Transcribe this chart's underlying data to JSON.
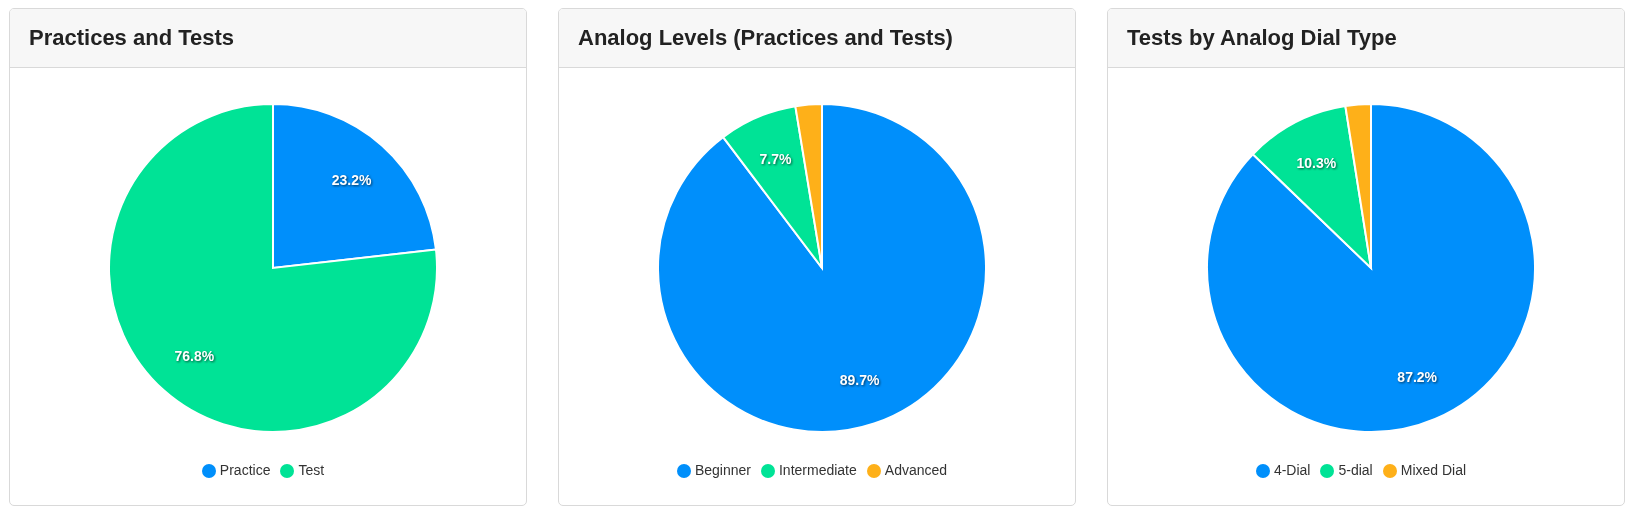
{
  "chart_data": [
    {
      "type": "pie",
      "title": "Practices and Tests",
      "categories": [
        "Practice",
        "Test"
      ],
      "values": [
        23.2,
        76.8
      ],
      "colors": [
        "#008ffb",
        "#00e396"
      ],
      "value_labels": [
        "23.2%",
        "76.8%"
      ],
      "legend": "bottom"
    },
    {
      "type": "pie",
      "title": "Analog Levels (Practices and Tests)",
      "categories": [
        "Beginner",
        "Intermediate",
        "Advanced"
      ],
      "values": [
        89.7,
        7.7,
        2.6
      ],
      "colors": [
        "#008ffb",
        "#00e396",
        "#feb019"
      ],
      "value_labels": [
        "89.7%",
        "7.7%",
        null
      ],
      "legend": "bottom"
    },
    {
      "type": "pie",
      "title": "Tests by Analog Dial Type",
      "categories": [
        "4-Dial",
        "5-dial",
        "Mixed Dial"
      ],
      "values": [
        87.2,
        10.3,
        2.5
      ],
      "colors": [
        "#008ffb",
        "#00e396",
        "#feb019"
      ],
      "value_labels": [
        "87.2%",
        "10.3%",
        null
      ],
      "legend": "bottom"
    }
  ]
}
